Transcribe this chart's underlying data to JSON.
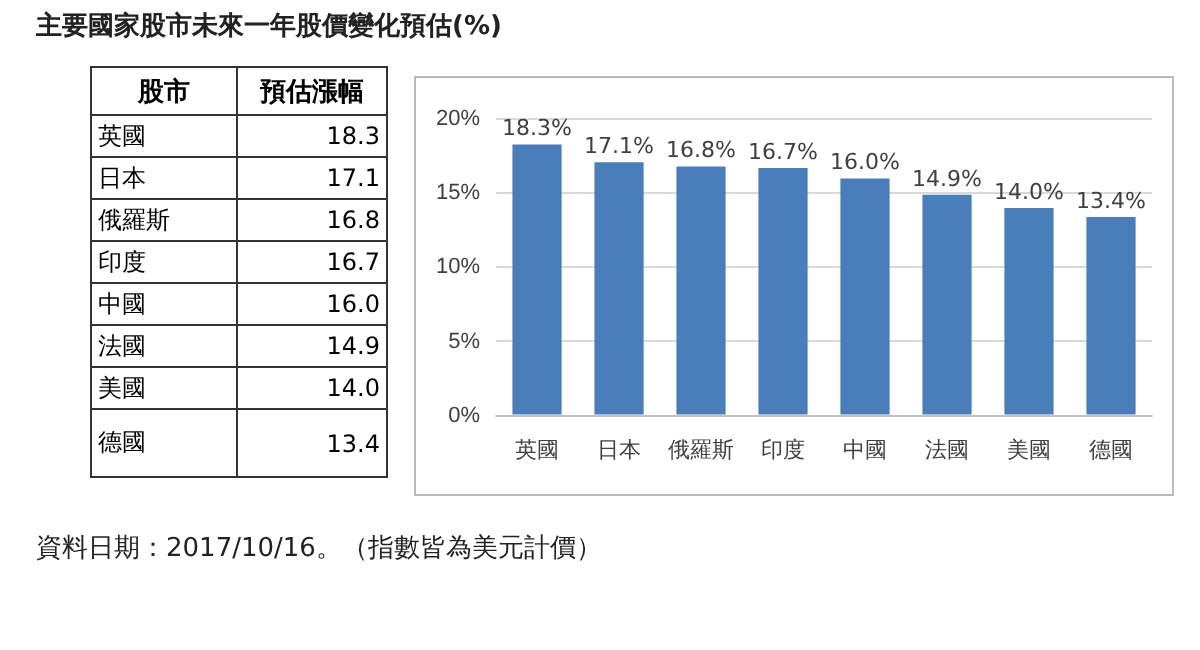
{
  "chart_data": [
    {
      "type": "other",
      "title": "主要國家股市未來一年股價變化預估(%)",
      "categories": [
        "英國",
        "日本",
        "俄羅斯",
        "印度",
        "中國",
        "法國",
        "美國",
        "德國"
      ],
      "value_labels": [
        "18.3",
        "17.1",
        "16.8",
        "16.7",
        "16.0",
        "14.9",
        "14.0",
        "13.4"
      ],
      "annotations": [
        "股市",
        "預估漲幅"
      ]
    },
    {
      "type": "bar",
      "categories": [
        "英國",
        "日本",
        "俄羅斯",
        "印度",
        "中國",
        "法國",
        "美國",
        "德國"
      ],
      "values": [
        18.3,
        17.1,
        16.8,
        16.7,
        16.0,
        14.9,
        14.0,
        13.4
      ],
      "color": "#4a7ebb",
      "value_labels": [
        "18.3%",
        "17.1%",
        "16.8%",
        "16.7%",
        "16.0%",
        "14.9%",
        "14.0%",
        "13.4%"
      ],
      "ylim": [
        0,
        20
      ],
      "yticks": [
        {
          "value": 0,
          "label": "0%"
        },
        {
          "value": 5,
          "label": "5%"
        },
        {
          "value": 10,
          "label": "10%"
        },
        {
          "value": 15,
          "label": "15%"
        },
        {
          "value": 20,
          "label": "20%"
        }
      ],
      "grid": "y",
      "annotations": [
        "資料日期：2017/10/16。（指數皆為美元計價）"
      ]
    }
  ]
}
